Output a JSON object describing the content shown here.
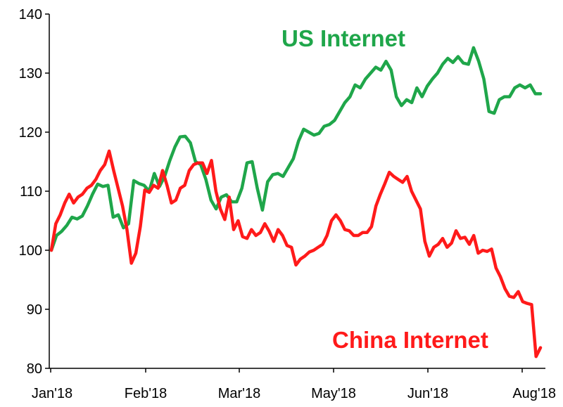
{
  "chart_data": {
    "type": "line",
    "title": "",
    "xlabel": "",
    "ylabel": "",
    "ylim": [
      80,
      140
    ],
    "yticks": [
      80,
      90,
      100,
      110,
      120,
      130,
      140
    ],
    "xticks": [
      "Jan'18",
      "Feb'18",
      "Mar'18",
      "May'18",
      "Jun'18",
      "Aug'18"
    ],
    "grid": false,
    "legend": "inline labels",
    "series": [
      {
        "name": "US Internet",
        "color": "#1fa64a",
        "values": [
          100,
          102.5,
          103.2,
          104.2,
          105.6,
          105.3,
          105.8,
          107.5,
          109.5,
          111.2,
          110.8,
          111,
          105.6,
          106,
          103.8,
          104.5,
          111.8,
          111.3,
          111,
          110,
          113,
          110.8,
          112.5,
          115.2,
          117.5,
          119.2,
          119.3,
          118.2,
          115,
          114.5,
          112,
          108.5,
          107,
          109,
          109.4,
          108.2,
          108.2,
          110.5,
          114.8,
          115,
          110.5,
          106.8,
          111.6,
          112.8,
          113,
          112.5,
          114,
          115.5,
          118.5,
          120.5,
          120,
          119.5,
          119.8,
          121,
          121.3,
          122,
          123.5,
          125,
          126,
          128,
          127.5,
          129,
          130,
          131,
          130.5,
          132,
          130.5,
          126,
          124.5,
          125.5,
          125,
          127.5,
          126,
          127.8,
          129,
          130,
          131.5,
          132.5,
          131.8,
          132.8,
          131.7,
          131.5,
          134.3,
          132,
          129,
          123.5,
          123.2,
          125.5,
          126,
          126,
          127.5,
          128,
          127.5,
          128,
          126.5,
          126.5
        ]
      },
      {
        "name": "China Internet",
        "color": "#ff1a1a",
        "values": [
          100,
          104.5,
          106,
          108,
          109.5,
          108,
          109,
          109.5,
          110.5,
          111,
          112,
          113.5,
          114.5,
          116.8,
          113.5,
          110.5,
          107.5,
          103.5,
          97.8,
          99.5,
          104,
          110.2,
          109.8,
          111,
          110.5,
          113.5,
          111,
          108,
          108.5,
          110.5,
          111,
          113.5,
          114.5,
          114.8,
          114.8,
          113,
          115.2,
          110,
          107,
          105.2,
          109,
          103.5,
          105,
          102.3,
          102,
          103.5,
          102.5,
          103,
          104.5,
          103.2,
          101.5,
          103.5,
          102.5,
          100.8,
          100.5,
          97.5,
          98.5,
          99,
          99.7,
          100,
          100.5,
          101,
          102.5,
          105,
          106,
          105,
          103.5,
          103.3,
          102.5,
          102.5,
          103,
          103,
          104,
          107.5,
          109.5,
          111.3,
          113.2,
          112.5,
          112,
          111.5,
          112.5,
          110,
          108.5,
          107,
          101.5,
          99,
          100.5,
          101,
          102,
          100.5,
          101.2,
          103.3,
          102,
          102.2,
          101,
          102.5,
          99.5,
          100,
          99.8,
          100.2,
          97,
          95.5,
          93.5,
          92.2,
          92,
          93,
          91.3,
          91,
          90.8,
          82,
          83.5
        ]
      }
    ],
    "annotations": [
      "US Internet",
      "China Internet"
    ]
  }
}
